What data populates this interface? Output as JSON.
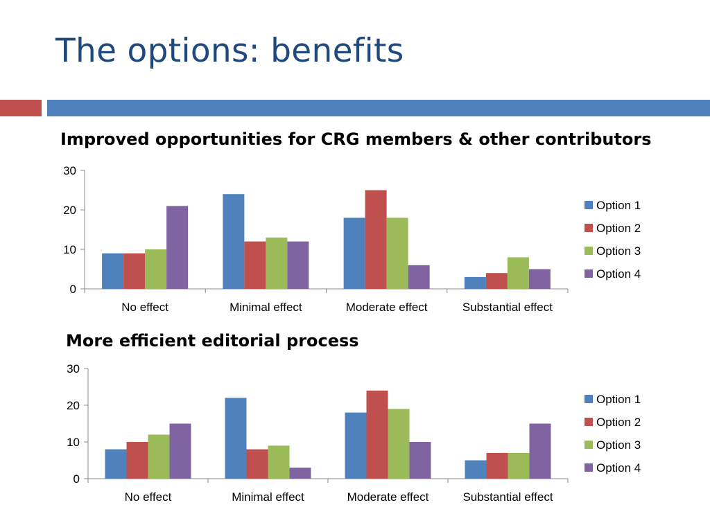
{
  "slide": {
    "title": "The options: benefits",
    "accent_colors": {
      "red": "#c0504d",
      "blue": "#4f81bd",
      "title": "#1f497d"
    }
  },
  "series_colors": [
    "#4f81bd",
    "#c0504d",
    "#9bbb59",
    "#8064a2"
  ],
  "chart_data": [
    {
      "type": "bar",
      "title": "Improved opportunities for CRG members & other contributors",
      "categories": [
        "No effect",
        "Minimal effect",
        "Moderate effect",
        "Substantial effect"
      ],
      "series": [
        {
          "name": "Option 1",
          "values": [
            9,
            24,
            18,
            3
          ]
        },
        {
          "name": "Option 2",
          "values": [
            9,
            12,
            25,
            4
          ]
        },
        {
          "name": "Option 3",
          "values": [
            10,
            13,
            18,
            8
          ]
        },
        {
          "name": "Option 4",
          "values": [
            21,
            12,
            6,
            5
          ]
        }
      ],
      "yticks": [
        0,
        10,
        20,
        30
      ],
      "ylim": [
        0,
        30
      ],
      "legend": "right",
      "grid": false
    },
    {
      "type": "bar",
      "title": "More efficient editorial process",
      "categories": [
        "No effect",
        "Minimal effect",
        "Moderate effect",
        "Substantial effect"
      ],
      "series": [
        {
          "name": "Option 1",
          "values": [
            8,
            22,
            18,
            5
          ]
        },
        {
          "name": "Option 2",
          "values": [
            10,
            8,
            24,
            7
          ]
        },
        {
          "name": "Option 3",
          "values": [
            12,
            9,
            19,
            7
          ]
        },
        {
          "name": "Option 4",
          "values": [
            15,
            3,
            10,
            15
          ]
        }
      ],
      "yticks": [
        0,
        10,
        20,
        30
      ],
      "ylim": [
        0,
        30
      ],
      "legend": "right",
      "grid": false
    }
  ]
}
